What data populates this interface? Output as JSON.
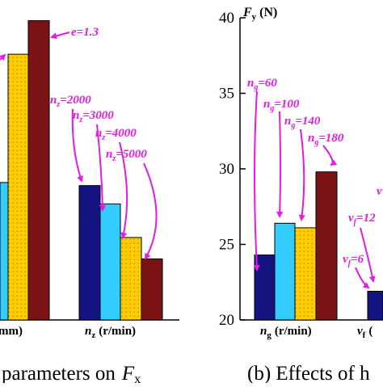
{
  "chart_data": [
    {
      "type": "bar",
      "caption": "(a) Effects of machining parameters on Fₓ",
      "caption_visible": "parameters on",
      "caption_var": "F",
      "caption_sub": "x",
      "groups": [
        {
          "xlabel_fragment": "mm)",
          "bars": [
            {
              "color": "#33ccff",
              "value_frac": 0.45
            },
            {
              "color": "#ffcc00",
              "value_frac": 0.87
            },
            {
              "color": "#7a1414",
              "value_frac": 0.98
            }
          ],
          "annotations": [
            {
              "var": "e",
              "sub": "",
              "text": "=1.3"
            }
          ]
        },
        {
          "xlabel_var": "n",
          "xlabel_sub": "z",
          "xlabel_unit": "(r/min)",
          "bars": [
            {
              "color": "#141480",
              "value_frac": 0.44,
              "label": "n_z=2000"
            },
            {
              "color": "#33ccff",
              "value_frac": 0.38,
              "label": "n_z=3000"
            },
            {
              "color": "#ffcc00",
              "value_frac": 0.27,
              "label": "n_z=4000"
            },
            {
              "color": "#7a1414",
              "value_frac": 0.2,
              "label": "n_z=5000"
            }
          ],
          "annotations": [
            {
              "var": "n",
              "sub": "z",
              "text": "=2000"
            },
            {
              "var": "n",
              "sub": "z",
              "text": "=3000"
            },
            {
              "var": "n",
              "sub": "z",
              "text": "=4000"
            },
            {
              "var": "n",
              "sub": "z",
              "text": "=5000"
            }
          ]
        }
      ]
    },
    {
      "type": "bar",
      "caption_visible": "(b) Effects of h",
      "y_axis": {
        "var": "F",
        "sub": "y",
        "unit": "(N)",
        "min": 20,
        "max": 40,
        "ticks": [
          20,
          25,
          30,
          35,
          40
        ]
      },
      "groups": [
        {
          "xlabel_var": "n",
          "xlabel_sub": "g",
          "xlabel_unit": "(r/min)",
          "bars": [
            {
              "color": "#141480",
              "value": 24.3,
              "label": "n_g=60"
            },
            {
              "color": "#33ccff",
              "value": 26.4,
              "label": "n_g=100"
            },
            {
              "color": "#ffcc00",
              "value": 26.1,
              "label": "n_g=140"
            },
            {
              "color": "#7a1414",
              "value": 29.8,
              "label": "n_g=180"
            }
          ],
          "annotations": [
            {
              "var": "n",
              "sub": "g",
              "text": "=60"
            },
            {
              "var": "n",
              "sub": "g",
              "text": "=100"
            },
            {
              "var": "n",
              "sub": "g",
              "text": "=140"
            },
            {
              "var": "n",
              "sub": "g",
              "text": "=180"
            }
          ]
        },
        {
          "xlabel_var": "v",
          "xlabel_sub": "f",
          "xlabel_unit": "(",
          "bars": [
            {
              "color": "#141480",
              "value": 21.9,
              "label": "v_f=6"
            }
          ],
          "annotations": [
            {
              "var": "v",
              "sub": "f",
              "text": "=6"
            },
            {
              "var": "v",
              "sub": "f",
              "text": "=12"
            },
            {
              "var": "v",
              "sub": "",
              "text": ""
            }
          ]
        }
      ]
    }
  ]
}
